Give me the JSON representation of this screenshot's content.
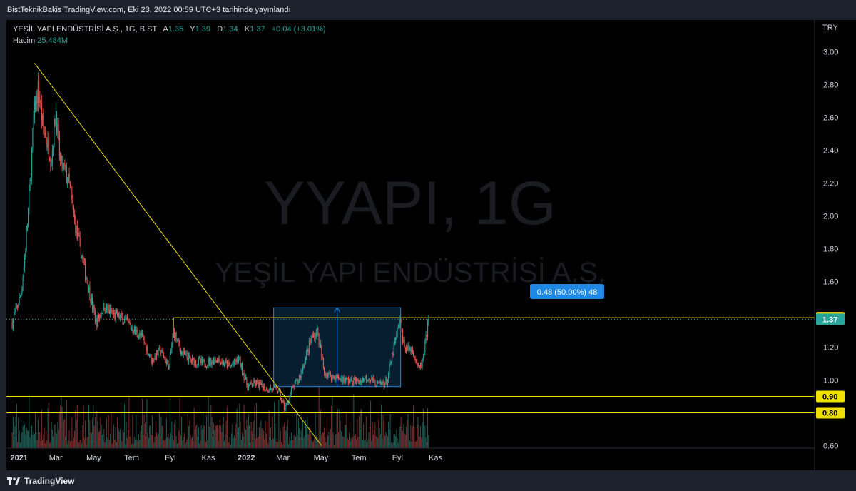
{
  "header": {
    "published": "BistTeknikBakis TradingView.com, Eki 23, 2022 00:59 UTC+3 tarihinde yayınlandı"
  },
  "legend": {
    "symbol": "YEŞİL YAPI ENDÜSTRİSİ A.Ş., 1G, BIST",
    "open_label": "A",
    "open": "1.35",
    "high_label": "Y",
    "high": "1.39",
    "low_label": "D",
    "low": "1.34",
    "close_label": "K",
    "close": "1.37",
    "change": "+0.04 (+3.01%)",
    "volume_label": "Hacim",
    "volume": "25.484M"
  },
  "watermark": {
    "ticker": "YYAPI, 1G",
    "company": "YEŞİL YAPI ENDÜSTRİSİ A.Ş."
  },
  "measure": {
    "label": "0.48 (50.00%) 48"
  },
  "footer": {
    "brand": "TradingView"
  },
  "colors": {
    "up": "#26a69a",
    "down": "#ef5350",
    "level": "#f0e000",
    "measure_blue": "#1e88e5",
    "background": "#000000",
    "frame": "#1e222d"
  },
  "chart_data": {
    "type": "candlestick",
    "currency": "TRY",
    "ylim": [
      0.6,
      3.05
    ],
    "y_ticks": [
      "3.00",
      "2.80",
      "2.60",
      "2.40",
      "2.20",
      "2.00",
      "1.80",
      "1.60",
      "1.20",
      "1.00",
      "0.60"
    ],
    "x_ticks": [
      "2021",
      "Mar",
      "May",
      "Tem",
      "Eyl",
      "Kas",
      "2022",
      "Mar",
      "May",
      "Tem",
      "Eyl",
      "Kas"
    ],
    "x_ticks_bold": [
      "2021",
      "2022"
    ],
    "close_path": [
      [
        "2020-12-21",
        1.35
      ],
      [
        "2021-01-04",
        1.52
      ],
      [
        "2021-01-11",
        1.78
      ],
      [
        "2021-01-18",
        2.15
      ],
      [
        "2021-01-25",
        2.62
      ],
      [
        "2021-02-01",
        2.78
      ],
      [
        "2021-02-08",
        2.55
      ],
      [
        "2021-02-15",
        2.45
      ],
      [
        "2021-02-22",
        2.35
      ],
      [
        "2021-03-01",
        2.65
      ],
      [
        "2021-03-08",
        2.32
      ],
      [
        "2021-03-15",
        2.28
      ],
      [
        "2021-03-22",
        2.2
      ],
      [
        "2021-04-01",
        1.95
      ],
      [
        "2021-04-12",
        1.75
      ],
      [
        "2021-04-26",
        1.5
      ],
      [
        "2021-05-05",
        1.35
      ],
      [
        "2021-05-17",
        1.45
      ],
      [
        "2021-05-31",
        1.4
      ],
      [
        "2021-06-14",
        1.38
      ],
      [
        "2021-07-01",
        1.32
      ],
      [
        "2021-07-19",
        1.25
      ],
      [
        "2021-08-02",
        1.12
      ],
      [
        "2021-08-16",
        1.18
      ],
      [
        "2021-08-30",
        1.08
      ],
      [
        "2021-09-06",
        1.3
      ],
      [
        "2021-09-20",
        1.16
      ],
      [
        "2021-10-04",
        1.12
      ],
      [
        "2021-10-25",
        1.1
      ],
      [
        "2021-11-15",
        1.13
      ],
      [
        "2021-12-06",
        1.08
      ],
      [
        "2021-12-20",
        1.13
      ],
      [
        "2022-01-03",
        0.96
      ],
      [
        "2022-01-17",
        0.98
      ],
      [
        "2022-02-01",
        0.95
      ],
      [
        "2022-02-21",
        0.94
      ],
      [
        "2022-03-04",
        0.82
      ],
      [
        "2022-03-14",
        0.93
      ],
      [
        "2022-03-28",
        1.02
      ],
      [
        "2022-04-15",
        1.25
      ],
      [
        "2022-04-25",
        1.3
      ],
      [
        "2022-05-06",
        1.05
      ],
      [
        "2022-05-20",
        1.02
      ],
      [
        "2022-06-10",
        1.0
      ],
      [
        "2022-07-01",
        0.99
      ],
      [
        "2022-07-15",
        1.02
      ],
      [
        "2022-08-01",
        0.97
      ],
      [
        "2022-08-15",
        0.99
      ],
      [
        "2022-08-29",
        1.25
      ],
      [
        "2022-09-05",
        1.36
      ],
      [
        "2022-09-12",
        1.2
      ],
      [
        "2022-09-26",
        1.18
      ],
      [
        "2022-10-05",
        1.06
      ],
      [
        "2022-10-12",
        1.12
      ],
      [
        "2022-10-21",
        1.37
      ]
    ],
    "series": [
      {
        "name": "Hacim",
        "type": "volume",
        "last": "25.484M"
      }
    ],
    "trendline": {
      "from": [
        "2021-01-26",
        2.93
      ],
      "to": [
        "2022-05-02",
        0.6
      ]
    },
    "horizontal_levels": [
      {
        "price": 1.38,
        "label": "1.38",
        "from": "2021-09-06"
      },
      {
        "price": 0.9,
        "label": "0.90"
      },
      {
        "price": 0.8,
        "label": "0.80"
      }
    ],
    "last_price": {
      "price": 1.37,
      "label": "1.37"
    },
    "price_range_measure": {
      "from": "2022-02-14",
      "to": "2022-09-06",
      "low": 0.96,
      "high": 1.44,
      "change": 0.48,
      "percent": 50.0,
      "bars": 48
    },
    "grid": false,
    "legend_position": "top-left"
  }
}
